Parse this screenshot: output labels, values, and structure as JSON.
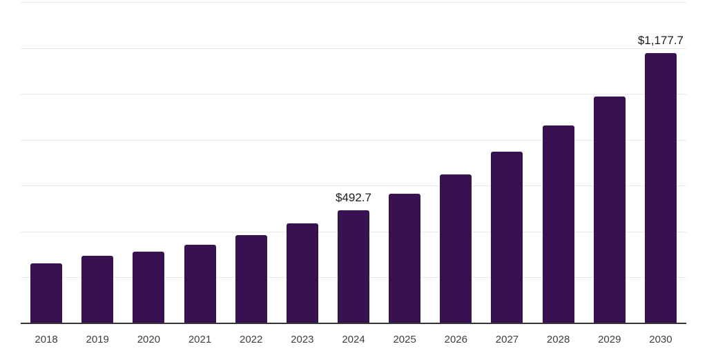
{
  "chart_data": {
    "type": "bar",
    "title": "",
    "categories": [
      "2018",
      "2019",
      "2020",
      "2021",
      "2022",
      "2023",
      "2024",
      "2025",
      "2026",
      "2027",
      "2028",
      "2029",
      "2030"
    ],
    "values": [
      261.4,
      292.4,
      312.2,
      342.0,
      384.0,
      435.0,
      492.7,
      562.8,
      648.0,
      746.0,
      861.4,
      987.0,
      1177.7
    ],
    "data_labels": {
      "2024": "$492.7",
      "2030": "$1,177.7"
    },
    "xlabel": "",
    "ylabel": "",
    "ylim": [
      0,
      1400
    ],
    "gridline_step": 200,
    "grid": "horizontal",
    "legend": "none",
    "y_axis_labels_visible": false,
    "colors": {
      "bar": "#371150",
      "gridline": "#e9e9e9",
      "axis": "#37353a",
      "value_label": "#1a1a1a",
      "tick_label": "#3d3d3d",
      "background": "#ffffff"
    }
  }
}
